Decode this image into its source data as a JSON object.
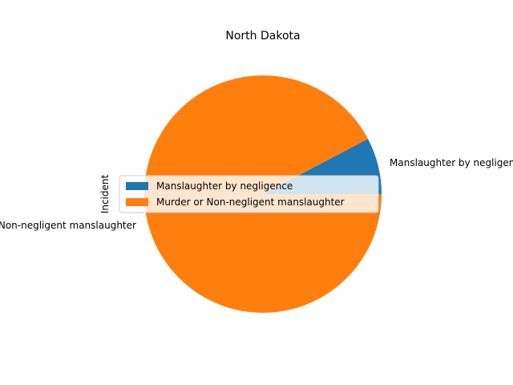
{
  "chart_data": {
    "type": "pie",
    "title": "North Dakota",
    "ylabel": "Incident",
    "slices": [
      {
        "label": "Manslaughter by negligence",
        "value": 7.7,
        "color": "#1f77b4"
      },
      {
        "label": "Murder or Non-negligent manslaughter",
        "value": 92.3,
        "color": "#ff7f0e"
      }
    ],
    "legend_position": "center-left",
    "start_angle": 0,
    "direction": "counterclockwise"
  }
}
